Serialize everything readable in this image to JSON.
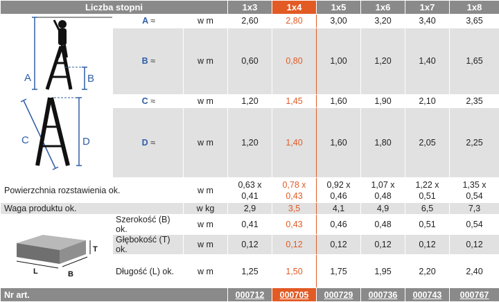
{
  "header": {
    "title": "Liczba stopni",
    "columns": [
      "1x3",
      "1x4",
      "1x5",
      "1x6",
      "1x7",
      "1x8"
    ]
  },
  "rows": {
    "A": {
      "label": "A",
      "approx": "≈",
      "unit": "w m",
      "values": [
        "2,60",
        "2,80",
        "3,00",
        "3,20",
        "3,40",
        "3,65"
      ]
    },
    "B": {
      "label": "B",
      "approx": "≈",
      "unit": "w m",
      "values": [
        "0,60",
        "0,80",
        "1,00",
        "1,20",
        "1,40",
        "1,65"
      ]
    },
    "C": {
      "label": "C",
      "approx": "≈",
      "unit": "w m",
      "values": [
        "1,20",
        "1,45",
        "1,60",
        "1,90",
        "2,10",
        "2,35"
      ]
    },
    "D": {
      "label": "D",
      "approx": "≈",
      "unit": "w m",
      "values": [
        "1,20",
        "1,40",
        "1,60",
        "1,80",
        "2,05",
        "2,25"
      ]
    },
    "area": {
      "label": "Powierzchnia rozstawienia ok.",
      "unit": "w m",
      "values_top": [
        "0,63 x",
        "0,78 x",
        "0,92 x",
        "1,07 x",
        "1,22 x",
        "1,35 x"
      ],
      "values_bottom": [
        "0,41",
        "0,43",
        "0,46",
        "0,48",
        "0,51",
        "0,54"
      ]
    },
    "weight": {
      "label": "Waga produktu ok.",
      "unit": "w kg",
      "values": [
        "2,9",
        "3,5",
        "4,1",
        "4,9",
        "6,5",
        "7,3"
      ]
    },
    "width": {
      "label": "Szerokość (B) ok.",
      "unit": "w m",
      "values": [
        "0,41",
        "0,43",
        "0,46",
        "0,48",
        "0,51",
        "0,54"
      ]
    },
    "depth": {
      "label": "Głębokość (T) ok.",
      "unit": "w m",
      "values": [
        "0,12",
        "0,12",
        "0,12",
        "0,12",
        "0,12",
        "0,12"
      ]
    },
    "length": {
      "label": "Długość (L) ok.",
      "unit": "w m",
      "values": [
        "1,25",
        "1,50",
        "1,75",
        "1,95",
        "2,20",
        "2,40"
      ]
    }
  },
  "footer": {
    "label": "Nr art.",
    "articles": [
      "000712",
      "000705",
      "000729",
      "000736",
      "000743",
      "000767"
    ]
  },
  "diagram_letters": {
    "a": "A",
    "b": "B",
    "c": "C",
    "d": "D",
    "t": "T",
    "l": "L",
    "b2": "B"
  },
  "colors": {
    "accent": "#e25a24",
    "header_bg": "#8a8a8a",
    "letter_blue": "#2f5da6",
    "row_gray": "#e1e1e1"
  }
}
